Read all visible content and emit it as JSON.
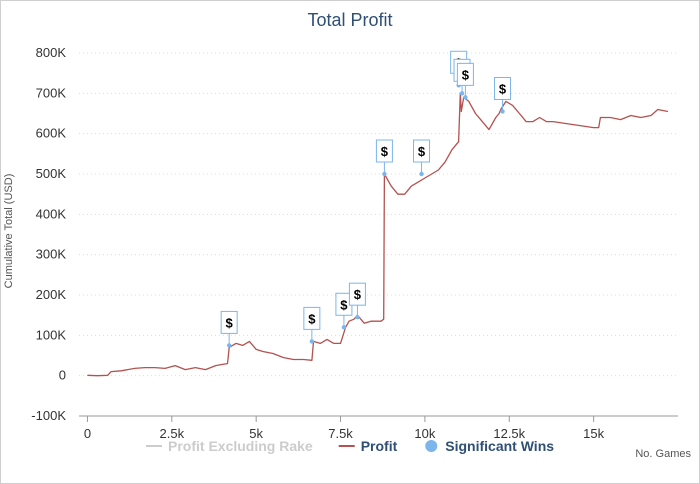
{
  "chart_data": {
    "type": "line",
    "title": "Total Profit",
    "xlabel": "No. Games",
    "ylabel": "Cumulative Total (USD)",
    "xlim": [
      -250,
      17500
    ],
    "ylim": [
      -100000,
      800000
    ],
    "x_ticks": [
      0,
      2500,
      5000,
      7500,
      10000,
      12500,
      15000
    ],
    "x_tick_labels": [
      "0",
      "2.5k",
      "5k",
      "7.5k",
      "10k",
      "12.5k",
      "15k"
    ],
    "y_ticks": [
      -100000,
      0,
      100000,
      200000,
      300000,
      400000,
      500000,
      600000,
      700000,
      800000
    ],
    "y_tick_labels": [
      "-100K",
      "0",
      "100K",
      "200K",
      "300K",
      "400K",
      "500K",
      "600K",
      "700K",
      "800K"
    ],
    "grid": true,
    "legend_position": "bottom",
    "series": [
      {
        "name": "Profit Excluding Rake",
        "color": "#cccccc",
        "visible": false,
        "x": [],
        "y": []
      },
      {
        "name": "Profit",
        "color": "#b5514f",
        "x": [
          0,
          300,
          600,
          700,
          1000,
          1400,
          1700,
          2000,
          2300,
          2600,
          2900,
          3200,
          3500,
          3800,
          4000,
          4150,
          4200,
          4400,
          4600,
          4800,
          5000,
          5200,
          5500,
          5800,
          6100,
          6400,
          6650,
          6700,
          6900,
          7100,
          7300,
          7500,
          7650,
          7750,
          7900,
          8000,
          8200,
          8400,
          8700,
          8780,
          8800,
          9000,
          9200,
          9400,
          9600,
          9800,
          10000,
          10200,
          10400,
          10600,
          10800,
          11000,
          11050,
          11080,
          11150,
          11300,
          11500,
          11700,
          11900,
          12100,
          12200,
          12250,
          12400,
          12600,
          12800,
          13000,
          13200,
          13400,
          13600,
          13800,
          14200,
          14600,
          15000,
          15150,
          15200,
          15500,
          15800,
          16100,
          16400,
          16700,
          16900,
          17200
        ],
        "y": [
          1000,
          0,
          1000,
          10000,
          12000,
          18000,
          20000,
          20000,
          18000,
          25000,
          15000,
          20000,
          15000,
          25000,
          28000,
          30000,
          70000,
          80000,
          75000,
          85000,
          65000,
          60000,
          55000,
          45000,
          40000,
          40000,
          38000,
          85000,
          80000,
          90000,
          80000,
          80000,
          120000,
          135000,
          140000,
          150000,
          130000,
          135000,
          135000,
          140000,
          500000,
          470000,
          450000,
          450000,
          470000,
          480000,
          490000,
          500000,
          510000,
          530000,
          560000,
          580000,
          700000,
          655000,
          690000,
          680000,
          650000,
          630000,
          610000,
          640000,
          650000,
          660000,
          680000,
          670000,
          650000,
          630000,
          630000,
          640000,
          630000,
          630000,
          625000,
          620000,
          615000,
          615000,
          640000,
          640000,
          635000,
          645000,
          640000,
          645000,
          660000,
          655000
        ]
      },
      {
        "name": "Significant Wins",
        "color": "#7cb5ec",
        "type": "flag",
        "flag_label": "$",
        "x": [
          4200,
          6650,
          7600,
          8000,
          8800,
          9900,
          11000,
          11100,
          11200,
          12300
        ],
        "y": [
          75000,
          85000,
          120000,
          145000,
          500000,
          500000,
          720000,
          700000,
          690000,
          655000
        ]
      }
    ]
  }
}
